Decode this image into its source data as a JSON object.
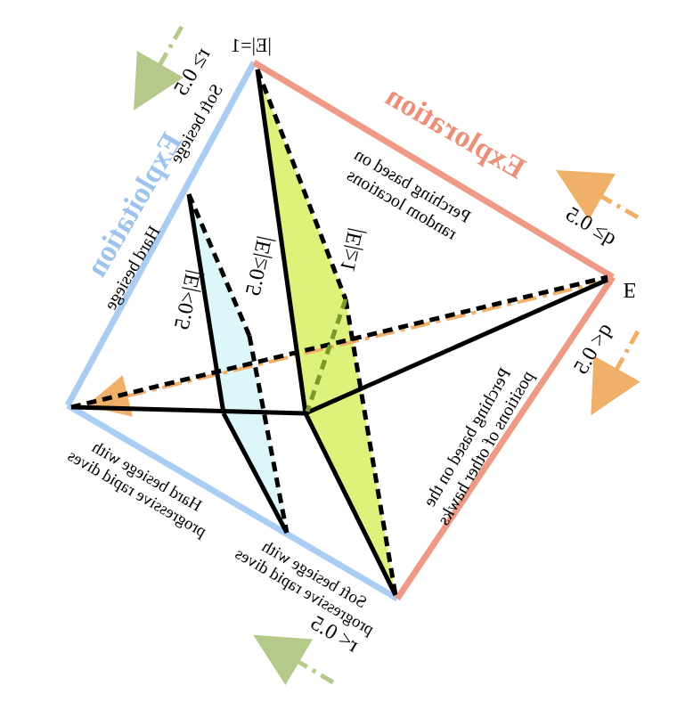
{
  "labels": {
    "exploitation": "Exploitation",
    "exploration": "Exploration",
    "vertex_top": "|E|=1",
    "vertex_right": "E",
    "r_ge": "r≥ 0.5",
    "r_lt": "r< 0.5",
    "q_ge": "q≥ 0.5",
    "q_lt": "q< 0.5",
    "e_lt_half": "|E|<0.5",
    "e_ge_half": "|E|≥0.5",
    "e_ge_one": "|E|≥1",
    "soft_besiege": [
      "Soft besiege"
    ],
    "hard_besiege": [
      "Hard besiege"
    ],
    "hard_besiege_dives": [
      "Hard besiege with",
      "progressive rapid dives"
    ],
    "soft_besiege_dives": [
      "Soft besiege with",
      "progressive rapid dives"
    ],
    "perch_random": [
      "Perching based on",
      "random locations"
    ],
    "perch_hawks": [
      "Perching based on the",
      "positions of other hawks"
    ]
  },
  "colors": {
    "exploitation": "#a9cdf3",
    "exploration": "#ee9a86",
    "exploitation_text": "#9ec4ee",
    "exploration_text": "#ec8f78",
    "plane_yellow": "#ddf27a",
    "plane_cyan": "#dcf6fa",
    "arrow_orange": "#f0b06a",
    "arrow_green": "#b5c98a"
  }
}
